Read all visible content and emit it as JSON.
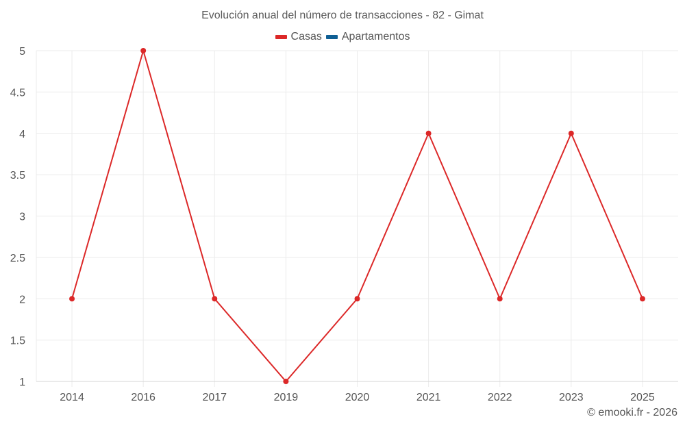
{
  "chart_title": "Evolución anual del número de transacciones - 82 - Gimat",
  "legend": [
    {
      "label": "Casas",
      "color": "#dc2828"
    },
    {
      "label": "Apartamentos",
      "color": "#0f5f94"
    }
  ],
  "credit": "© emooki.fr - 2026",
  "chart_data": {
    "type": "line",
    "title": "Evolución anual del número de transacciones - 82 - Gimat",
    "xlabel": "",
    "ylabel": "",
    "categories": [
      "2014",
      "2016",
      "2017",
      "2019",
      "2020",
      "2021",
      "2022",
      "2023",
      "2025"
    ],
    "series": [
      {
        "name": "Casas",
        "color": "#dc2828",
        "values": [
          2,
          5,
          2,
          1,
          2,
          4,
          2,
          4,
          2
        ]
      },
      {
        "name": "Apartamentos",
        "color": "#0f5f94",
        "values": []
      }
    ],
    "ylim": [
      1,
      5
    ],
    "yticks": [
      "1",
      "1.5",
      "2",
      "2.5",
      "3",
      "3.5",
      "4",
      "4.5",
      "5"
    ],
    "grid": true,
    "legend_position": "top"
  }
}
